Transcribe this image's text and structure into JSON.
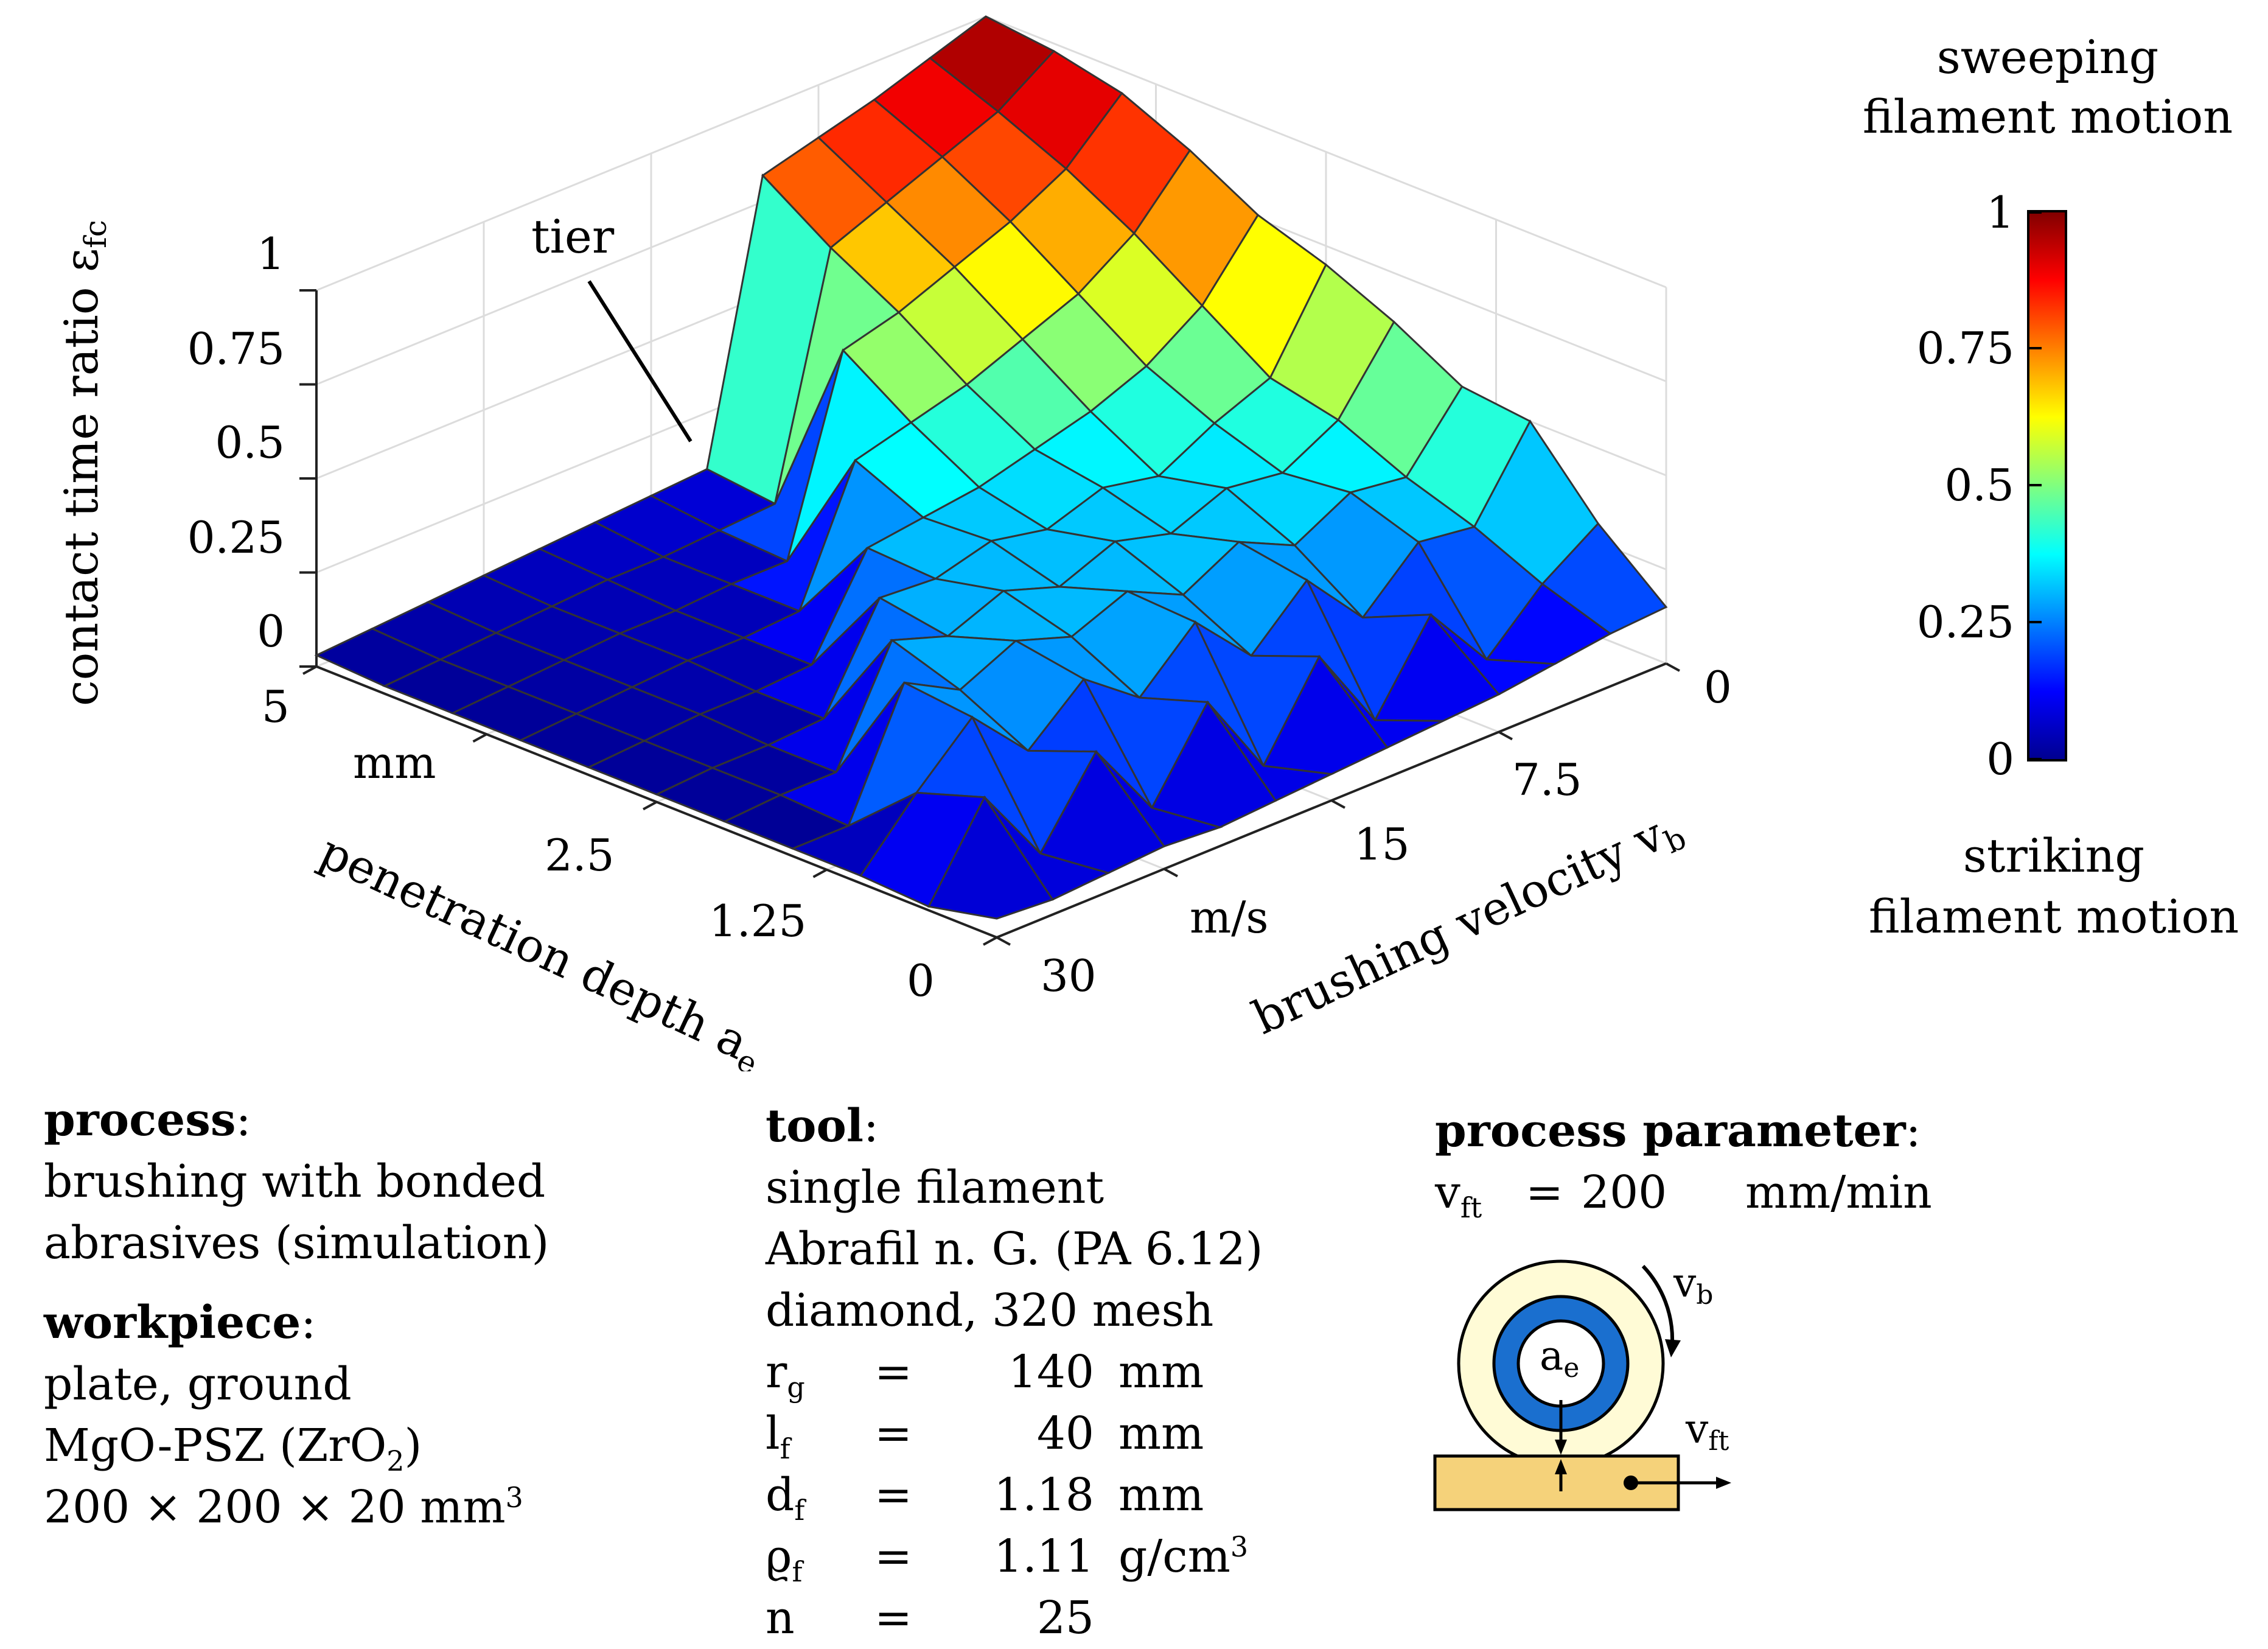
{
  "chart_data": {
    "type": "surface3d",
    "z_label": "contact time ratio ε",
    "z_label_sub": "fc",
    "z_ticks": [
      "0",
      "0.25",
      "0.5",
      "0.75",
      "1"
    ],
    "z_range": [
      0,
      1
    ],
    "y_label": "penetration depth a",
    "y_label_sub": "e",
    "y_ticks": [
      "0",
      "1.25",
      "2.5",
      "mm",
      "5"
    ],
    "y_range": [
      0,
      5
    ],
    "x_label": "brushing velocity v",
    "x_label_sub": "b",
    "x_ticks": [
      "0",
      "7.5",
      "15",
      "m/s",
      "30"
    ],
    "x_range": [
      0,
      30
    ],
    "annotation": "tier",
    "colorbar": {
      "ticks": [
        "0",
        "0.25",
        "0.5",
        "0.75",
        "1"
      ],
      "range": [
        0,
        1
      ],
      "colormap": "jet",
      "top_label_1": "sweeping",
      "top_label_2": "filament motion",
      "bottom_label_1": "striking",
      "bottom_label_2": "filament motion"
    },
    "surface": {
      "velocity_values": [
        0,
        2.5,
        5,
        7.5,
        10,
        12.5,
        15,
        17.5,
        20,
        22.5,
        25,
        27.5,
        30
      ],
      "depth_values": [
        0,
        0.5,
        1.0,
        1.5,
        2.0,
        2.5,
        3.0,
        3.5,
        4.0,
        4.5,
        5.0
      ],
      "z": [
        [
          0.15,
          0.14,
          0.12,
          0.1,
          0.09,
          0.08,
          0.07,
          0.06,
          0.05,
          0.06,
          0.05,
          0.04,
          0.05
        ],
        [
          0.3,
          0.2,
          0.06,
          0.24,
          0.02,
          0.25,
          0.02,
          0.25,
          0.03,
          0.24,
          0.03,
          0.24,
          0.01
        ],
        [
          0.5,
          0.28,
          0.3,
          0.16,
          0.32,
          0.18,
          0.33,
          0.19,
          0.3,
          0.17,
          0.32,
          0.18,
          0.02
        ],
        [
          0.52,
          0.34,
          0.36,
          0.28,
          0.35,
          0.27,
          0.34,
          0.28,
          0.33,
          0.26,
          0.34,
          0.02,
          0.02
        ],
        [
          0.62,
          0.42,
          0.34,
          0.36,
          0.3,
          0.34,
          0.28,
          0.33,
          0.27,
          0.32,
          0.03,
          0.03,
          0.02
        ],
        [
          0.7,
          0.46,
          0.4,
          0.32,
          0.35,
          0.3,
          0.33,
          0.29,
          0.3,
          0.04,
          0.03,
          0.03,
          0.02
        ],
        [
          0.76,
          0.58,
          0.48,
          0.42,
          0.38,
          0.34,
          0.32,
          0.3,
          0.05,
          0.04,
          0.04,
          0.03,
          0.02
        ],
        [
          0.86,
          0.7,
          0.6,
          0.54,
          0.48,
          0.44,
          0.4,
          0.06,
          0.05,
          0.05,
          0.04,
          0.03,
          0.02
        ],
        [
          0.94,
          0.8,
          0.72,
          0.66,
          0.6,
          0.56,
          0.06,
          0.06,
          0.05,
          0.05,
          0.04,
          0.03,
          0.02
        ],
        [
          0.98,
          0.88,
          0.82,
          0.76,
          0.7,
          0.08,
          0.07,
          0.06,
          0.06,
          0.05,
          0.04,
          0.03,
          0.02
        ],
        [
          1.0,
          0.95,
          0.9,
          0.86,
          0.82,
          0.1,
          0.09,
          0.08,
          0.07,
          0.06,
          0.05,
          0.04,
          0.03
        ]
      ]
    }
  },
  "process": {
    "heading": "process",
    "colon": ":",
    "line1": "brushing with bonded",
    "line2": "abrasives (simulation)"
  },
  "workpiece": {
    "heading": "workpiece",
    "colon": ":",
    "line1": "plate, ground",
    "line2_pre": "MgO-PSZ (ZrO",
    "line2_sub": "2",
    "line2_post": ")",
    "line3_pre": "200 × 200 × 20 mm",
    "line3_sup": "3"
  },
  "tool": {
    "heading": "tool",
    "colon": ":",
    "line1": "single filament",
    "line2": "Abrafil n. G. (PA 6.12)",
    "line3": "diamond, 320 mesh",
    "params": [
      {
        "sym": "r",
        "sub": "g",
        "eq": "=",
        "val": "140",
        "unit": "mm",
        "unit_sup": ""
      },
      {
        "sym": "l",
        "sub": "f",
        "eq": "=",
        "val": "40",
        "unit": "mm",
        "unit_sup": ""
      },
      {
        "sym": "d",
        "sub": "f",
        "eq": "=",
        "val": "1.18",
        "unit": "mm",
        "unit_sup": ""
      },
      {
        "sym": "ϱ",
        "sub": "f",
        "eq": "=",
        "val": "1.11",
        "unit": "g/cm",
        "unit_sup": "3"
      },
      {
        "sym": "n",
        "sub": "",
        "eq": "=",
        "val": "25",
        "unit": "",
        "unit_sup": ""
      }
    ]
  },
  "process_parameter": {
    "heading": "process parameter",
    "colon": ":",
    "sym": "v",
    "sub": "ft",
    "eq": "=",
    "val": "200",
    "unit": "mm/min"
  },
  "schematic": {
    "label_vb": "v",
    "label_vb_sub": "b",
    "label_ae": "a",
    "label_ae_sub": "e",
    "label_vft": "v",
    "label_vft_sub": "ft",
    "colors": {
      "outer_ring": "#fffbd6",
      "blue_ring": "#1a6fcf",
      "plate": "#f5d27a"
    }
  }
}
